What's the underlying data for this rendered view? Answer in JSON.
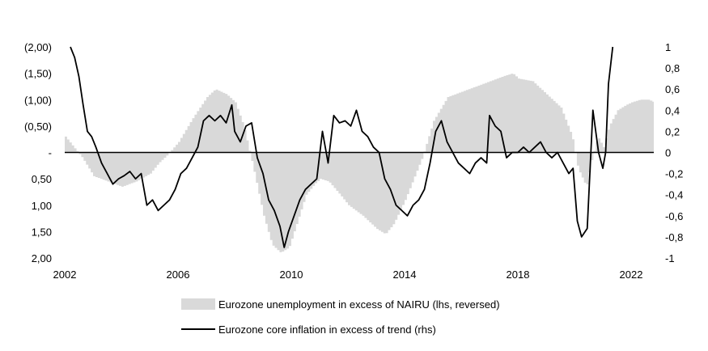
{
  "chart_data": {
    "type": "area+line",
    "title": "",
    "x_ticks": [
      "2002",
      "2006",
      "2010",
      "2014",
      "2018",
      "2022"
    ],
    "xlim": [
      2002,
      2022.8
    ],
    "left_axis": {
      "reversed": true,
      "ylim": [
        -2.0,
        2.0
      ],
      "tick_values": [
        -2.0,
        -1.5,
        -1.0,
        -0.5,
        0,
        0.5,
        1.0,
        1.5,
        2.0
      ],
      "tick_labels": [
        "(2,00)",
        "(1,50)",
        "(1,00)",
        "(0,50)",
        "-",
        "0,50",
        "1,00",
        "1,50",
        "2,00"
      ]
    },
    "right_axis": {
      "ylim": [
        -1.0,
        1.0
      ],
      "tick_values": [
        1,
        0.8,
        0.6,
        0.4,
        0.2,
        0,
        -0.2,
        -0.4,
        -0.6,
        -0.8,
        -1
      ],
      "tick_labels": [
        "1",
        "0,8",
        "0,6",
        "0,4",
        "0,2",
        "0",
        "-0,2",
        "-0,4",
        "-0,6",
        "-0,8",
        "-1"
      ]
    },
    "series": [
      {
        "name": "Eurozone unemployment in excess of NAIRU (lhs, reversed)",
        "kind": "area",
        "axis": "left",
        "color": "#d9d9d9",
        "points": [
          [
            2002.0,
            -0.3
          ],
          [
            2002.3,
            -0.1
          ],
          [
            2002.6,
            0.1
          ],
          [
            2003.0,
            0.45
          ],
          [
            2003.5,
            0.55
          ],
          [
            2004.0,
            0.65
          ],
          [
            2004.5,
            0.55
          ],
          [
            2005.0,
            0.4
          ],
          [
            2005.3,
            0.2
          ],
          [
            2005.6,
            0.05
          ],
          [
            2006.0,
            -0.2
          ],
          [
            2006.5,
            -0.65
          ],
          [
            2007.0,
            -1.05
          ],
          [
            2007.3,
            -1.2
          ],
          [
            2007.7,
            -1.1
          ],
          [
            2008.0,
            -0.95
          ],
          [
            2008.3,
            -0.5
          ],
          [
            2008.6,
            0.2
          ],
          [
            2009.0,
            1.2
          ],
          [
            2009.3,
            1.75
          ],
          [
            2009.6,
            1.9
          ],
          [
            2009.9,
            1.8
          ],
          [
            2010.2,
            1.3
          ],
          [
            2010.5,
            0.8
          ],
          [
            2010.8,
            0.6
          ],
          [
            2011.0,
            0.5
          ],
          [
            2011.3,
            0.55
          ],
          [
            2011.7,
            0.8
          ],
          [
            2012.0,
            1.0
          ],
          [
            2012.5,
            1.2
          ],
          [
            2013.0,
            1.45
          ],
          [
            2013.3,
            1.55
          ],
          [
            2013.6,
            1.35
          ],
          [
            2014.0,
            0.9
          ],
          [
            2014.3,
            0.5
          ],
          [
            2014.6,
            0.1
          ],
          [
            2015.0,
            -0.6
          ],
          [
            2015.5,
            -1.05
          ],
          [
            2016.0,
            -1.15
          ],
          [
            2016.5,
            -1.25
          ],
          [
            2017.0,
            -1.35
          ],
          [
            2017.5,
            -1.45
          ],
          [
            2017.8,
            -1.5
          ],
          [
            2018.0,
            -1.4
          ],
          [
            2018.5,
            -1.35
          ],
          [
            2019.0,
            -1.1
          ],
          [
            2019.5,
            -0.85
          ],
          [
            2019.9,
            -0.3
          ],
          [
            2020.1,
            0.3
          ],
          [
            2020.4,
            0.65
          ],
          [
            2020.6,
            0.1
          ],
          [
            2020.8,
            -0.3
          ],
          [
            2021.0,
            -0.1
          ],
          [
            2021.2,
            -0.5
          ],
          [
            2021.5,
            -0.8
          ],
          [
            2021.8,
            -0.9
          ],
          [
            2022.0,
            -0.95
          ],
          [
            2022.3,
            -1.0
          ],
          [
            2022.6,
            -1.0
          ],
          [
            2022.8,
            -0.95
          ]
        ]
      },
      {
        "name": "Eurozone core inflation in excess of trend (rhs)",
        "kind": "line",
        "axis": "right",
        "color": "#000000",
        "points": [
          [
            2002.2,
            1.0
          ],
          [
            2002.35,
            0.9
          ],
          [
            2002.5,
            0.72
          ],
          [
            2002.65,
            0.45
          ],
          [
            2002.8,
            0.2
          ],
          [
            2002.95,
            0.15
          ],
          [
            2003.1,
            0.05
          ],
          [
            2003.3,
            -0.1
          ],
          [
            2003.5,
            -0.2
          ],
          [
            2003.7,
            -0.3
          ],
          [
            2003.9,
            -0.25
          ],
          [
            2004.1,
            -0.22
          ],
          [
            2004.3,
            -0.18
          ],
          [
            2004.5,
            -0.25
          ],
          [
            2004.7,
            -0.2
          ],
          [
            2004.9,
            -0.5
          ],
          [
            2005.1,
            -0.45
          ],
          [
            2005.3,
            -0.55
          ],
          [
            2005.5,
            -0.5
          ],
          [
            2005.7,
            -0.45
          ],
          [
            2005.9,
            -0.35
          ],
          [
            2006.1,
            -0.2
          ],
          [
            2006.3,
            -0.15
          ],
          [
            2006.5,
            -0.05
          ],
          [
            2006.7,
            0.05
          ],
          [
            2006.9,
            0.3
          ],
          [
            2007.1,
            0.35
          ],
          [
            2007.3,
            0.3
          ],
          [
            2007.5,
            0.35
          ],
          [
            2007.7,
            0.28
          ],
          [
            2007.9,
            0.45
          ],
          [
            2008.0,
            0.2
          ],
          [
            2008.2,
            0.1
          ],
          [
            2008.4,
            0.25
          ],
          [
            2008.6,
            0.28
          ],
          [
            2008.8,
            -0.05
          ],
          [
            2009.0,
            -0.2
          ],
          [
            2009.2,
            -0.45
          ],
          [
            2009.4,
            -0.55
          ],
          [
            2009.6,
            -0.7
          ],
          [
            2009.75,
            -0.9
          ],
          [
            2009.9,
            -0.75
          ],
          [
            2010.1,
            -0.6
          ],
          [
            2010.3,
            -0.45
          ],
          [
            2010.5,
            -0.35
          ],
          [
            2010.7,
            -0.3
          ],
          [
            2010.9,
            -0.25
          ],
          [
            2011.1,
            0.2
          ],
          [
            2011.3,
            -0.1
          ],
          [
            2011.5,
            0.35
          ],
          [
            2011.7,
            0.28
          ],
          [
            2011.9,
            0.3
          ],
          [
            2012.1,
            0.25
          ],
          [
            2012.3,
            0.4
          ],
          [
            2012.5,
            0.2
          ],
          [
            2012.7,
            0.15
          ],
          [
            2012.9,
            0.05
          ],
          [
            2013.1,
            0.0
          ],
          [
            2013.3,
            -0.25
          ],
          [
            2013.5,
            -0.35
          ],
          [
            2013.7,
            -0.5
          ],
          [
            2013.9,
            -0.55
          ],
          [
            2014.1,
            -0.6
          ],
          [
            2014.3,
            -0.5
          ],
          [
            2014.5,
            -0.45
          ],
          [
            2014.7,
            -0.35
          ],
          [
            2014.9,
            -0.1
          ],
          [
            2015.1,
            0.2
          ],
          [
            2015.3,
            0.3
          ],
          [
            2015.5,
            0.1
          ],
          [
            2015.7,
            0.0
          ],
          [
            2015.9,
            -0.1
          ],
          [
            2016.1,
            -0.15
          ],
          [
            2016.3,
            -0.2
          ],
          [
            2016.5,
            -0.1
          ],
          [
            2016.7,
            -0.05
          ],
          [
            2016.9,
            -0.1
          ],
          [
            2017.0,
            0.35
          ],
          [
            2017.2,
            0.25
          ],
          [
            2017.4,
            0.2
          ],
          [
            2017.6,
            -0.05
          ],
          [
            2017.8,
            0.0
          ],
          [
            2018.0,
            0.0
          ],
          [
            2018.2,
            0.05
          ],
          [
            2018.4,
            0.0
          ],
          [
            2018.6,
            0.05
          ],
          [
            2018.8,
            0.1
          ],
          [
            2019.0,
            0.0
          ],
          [
            2019.2,
            -0.05
          ],
          [
            2019.4,
            0.0
          ],
          [
            2019.6,
            -0.1
          ],
          [
            2019.8,
            -0.2
          ],
          [
            2019.95,
            -0.15
          ],
          [
            2020.1,
            -0.65
          ],
          [
            2020.25,
            -0.8
          ],
          [
            2020.45,
            -0.72
          ],
          [
            2020.65,
            0.4
          ],
          [
            2020.85,
            0.0
          ],
          [
            2021.0,
            -0.15
          ],
          [
            2021.1,
            0.0
          ],
          [
            2021.2,
            0.65
          ],
          [
            2021.35,
            1.0
          ]
        ]
      }
    ],
    "legend": {
      "placement": "bottom",
      "entries": [
        "Eurozone unemployment in excess of NAIRU (lhs, reversed)",
        "Eurozone core inflation in excess of trend (rhs)"
      ]
    },
    "grid": false
  }
}
